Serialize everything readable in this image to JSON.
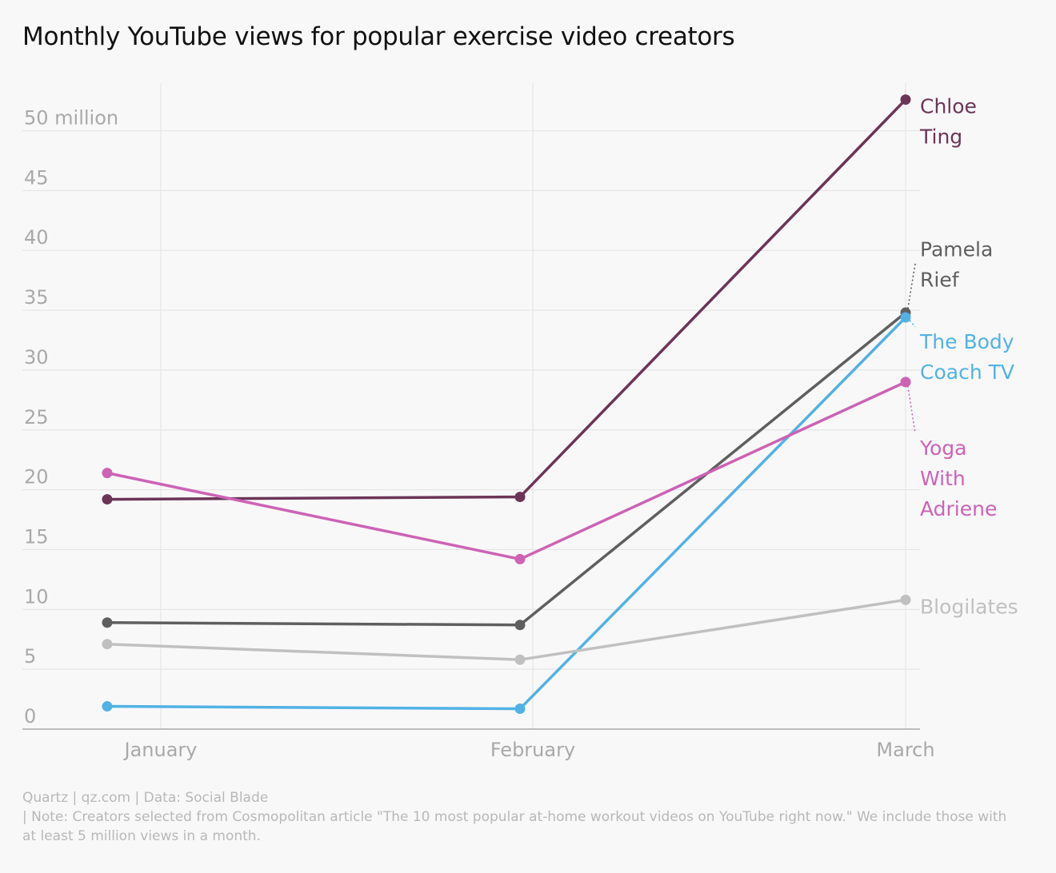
{
  "title": "Monthly YouTube views for popular exercise video creators",
  "footer": {
    "source": "Quartz | qz.com | Data: Social Blade",
    "note": "| Note: Creators selected from Cosmopolitan article \"The 10 most popular at-home workout videos on YouTube right now.\" We include those with at least 5 million views in a month."
  },
  "chart_data": {
    "type": "line",
    "x": [
      "January",
      "February",
      "March"
    ],
    "y_ticks": [
      {
        "value": 0,
        "label": "0"
      },
      {
        "value": 5,
        "label": "5"
      },
      {
        "value": 10,
        "label": "10"
      },
      {
        "value": 15,
        "label": "15"
      },
      {
        "value": 20,
        "label": "20"
      },
      {
        "value": 25,
        "label": "25"
      },
      {
        "value": 30,
        "label": "30"
      },
      {
        "value": 35,
        "label": "35"
      },
      {
        "value": 40,
        "label": "40"
      },
      {
        "value": 45,
        "label": "45"
      },
      {
        "value": 50,
        "label": "50 million"
      }
    ],
    "ylim": [
      0,
      54
    ],
    "grid": true,
    "legend": "direct labels at right end of lines",
    "series": [
      {
        "name": "Chloe Ting",
        "label_lines": [
          "Chloe",
          "Ting"
        ],
        "color": "#6b3557",
        "values": [
          19.2,
          19.4,
          52.6
        ],
        "label_at": 51.2,
        "leader": false
      },
      {
        "name": "Pamela Rief",
        "label_lines": [
          "Pamela",
          "Rief"
        ],
        "color": "#5f5f5f",
        "values": [
          8.9,
          8.7,
          34.8
        ],
        "label_at": 39.5,
        "leader": true
      },
      {
        "name": "The Body Coach TV",
        "label_lines": [
          "The Body",
          "Coach TV"
        ],
        "color": "#51b2e5",
        "values": [
          1.9,
          1.7,
          34.4
        ],
        "label_at": 31.8,
        "leader": true
      },
      {
        "name": "Yoga With Adriene",
        "label_lines": [
          "Yoga",
          "With",
          "Adriene"
        ],
        "color": "#cc63b5",
        "values": [
          21.4,
          14.2,
          29.0
        ],
        "label_at": 22.9,
        "leader": true
      },
      {
        "name": "Blogilates",
        "label_lines": [
          "Blogilates"
        ],
        "color": "#c0c0c0",
        "values": [
          7.1,
          5.8,
          10.8
        ],
        "label_at": 10.3,
        "leader": false
      }
    ]
  }
}
